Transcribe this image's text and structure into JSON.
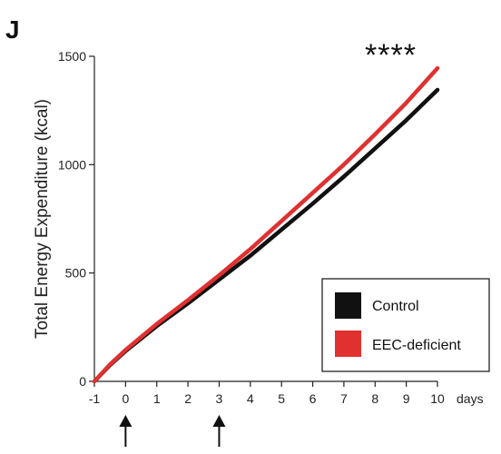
{
  "panel_label": "J",
  "chart_data": {
    "type": "line",
    "title": "",
    "xlabel": "",
    "x_unit_label": "days",
    "ylabel": "Total Energy Expenditure (kcal)",
    "xlim": [
      -1,
      10
    ],
    "ylim": [
      0,
      1500
    ],
    "x_ticks": [
      -1,
      0,
      1,
      2,
      3,
      4,
      5,
      6,
      7,
      8,
      9,
      10
    ],
    "y_ticks": [
      0,
      500,
      1000,
      1500
    ],
    "x": [
      -1,
      -0.5,
      0,
      1,
      2,
      3,
      4,
      5,
      6,
      7,
      8,
      9,
      10
    ],
    "series": [
      {
        "name": "Control",
        "color": "#111111",
        "values": [
          0,
          75,
          140,
          255,
          360,
          470,
          580,
          700,
          820,
          945,
          1075,
          1205,
          1345
        ]
      },
      {
        "name": "EEC-deficient",
        "color": "#e03030",
        "values": [
          0,
          78,
          145,
          265,
          375,
          490,
          610,
          740,
          870,
          1000,
          1140,
          1285,
          1445
        ]
      }
    ],
    "significance": "****",
    "arrows_at_x": [
      0,
      3
    ],
    "legend_position": "bottom-right",
    "grid": false
  }
}
